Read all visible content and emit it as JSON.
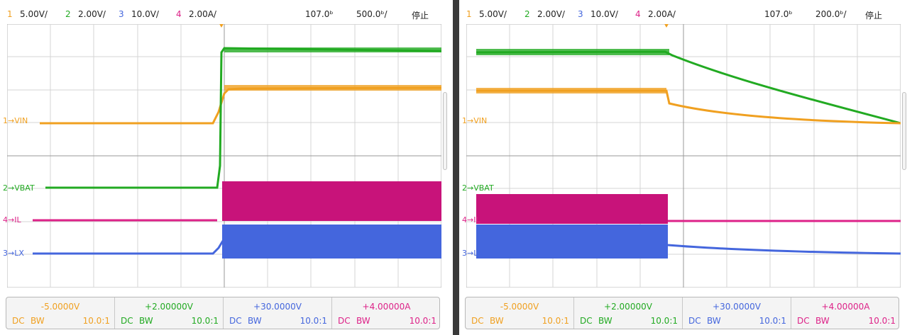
{
  "scopes": [
    {
      "id": "left",
      "header": {
        "ch1_num": "1",
        "ch1_scale": "5.00V/",
        "ch2_num": "2",
        "ch2_scale": "2.00V/",
        "ch3_num": "3",
        "ch3_scale": "10.0V/",
        "ch4_num": "4",
        "ch4_scale": "2.00A/",
        "trigger_delay": "107.0ᵇ",
        "timebase": "500.0ᵇ/",
        "run_state": "停止"
      },
      "labels": {
        "vin": "1→VIN",
        "vbat": "2→VBAT",
        "il": "4→IL",
        "lx": "3→LX"
      },
      "channels": [
        {
          "offset": "-5.0000V",
          "coupling": "DC",
          "bw": "BW",
          "probe": "10.0:1",
          "color": "#f0a020"
        },
        {
          "offset": "+2.00000V",
          "coupling": "DC",
          "bw": "BW",
          "probe": "10.0:1",
          "color": "#22aa22"
        },
        {
          "offset": "+30.0000V",
          "coupling": "DC",
          "bw": "BW",
          "probe": "10.0:1",
          "color": "#4466dd"
        },
        {
          "offset": "+4.00000A",
          "coupling": "DC",
          "bw": "BW",
          "probe": "10.0:1",
          "color": "#dd2288"
        }
      ]
    },
    {
      "id": "right",
      "header": {
        "ch1_num": "1",
        "ch1_scale": "5.00V/",
        "ch2_num": "2",
        "ch2_scale": "2.00V/",
        "ch3_num": "3",
        "ch3_scale": "10.0V/",
        "ch4_num": "4",
        "ch4_scale": "2.00A/",
        "trigger_delay": "107.0ᵇ",
        "timebase": "200.0ᵇ/",
        "run_state": "停止"
      },
      "labels": {
        "vin": "1→VIN",
        "vbat": "2→VBAT",
        "il": "4→IL",
        "lx": "3→LX"
      },
      "channels": [
        {
          "offset": "-5.0000V",
          "coupling": "DC",
          "bw": "BW",
          "probe": "10.0:1",
          "color": "#f0a020"
        },
        {
          "offset": "+2.00000V",
          "coupling": "DC",
          "bw": "BW",
          "probe": "10.0:1",
          "color": "#22aa22"
        },
        {
          "offset": "+30.0000V",
          "coupling": "DC",
          "bw": "BW",
          "probe": "10.0:1",
          "color": "#4466dd"
        },
        {
          "offset": "+4.00000A",
          "coupling": "DC",
          "bw": "BW",
          "probe": "10.0:1",
          "color": "#dd2288"
        }
      ]
    }
  ],
  "colors": {
    "ch1": "#f0a020",
    "ch2": "#22aa22",
    "ch3": "#4466dd",
    "ch4": "#dd2288",
    "grid": "#d0d0d0"
  }
}
